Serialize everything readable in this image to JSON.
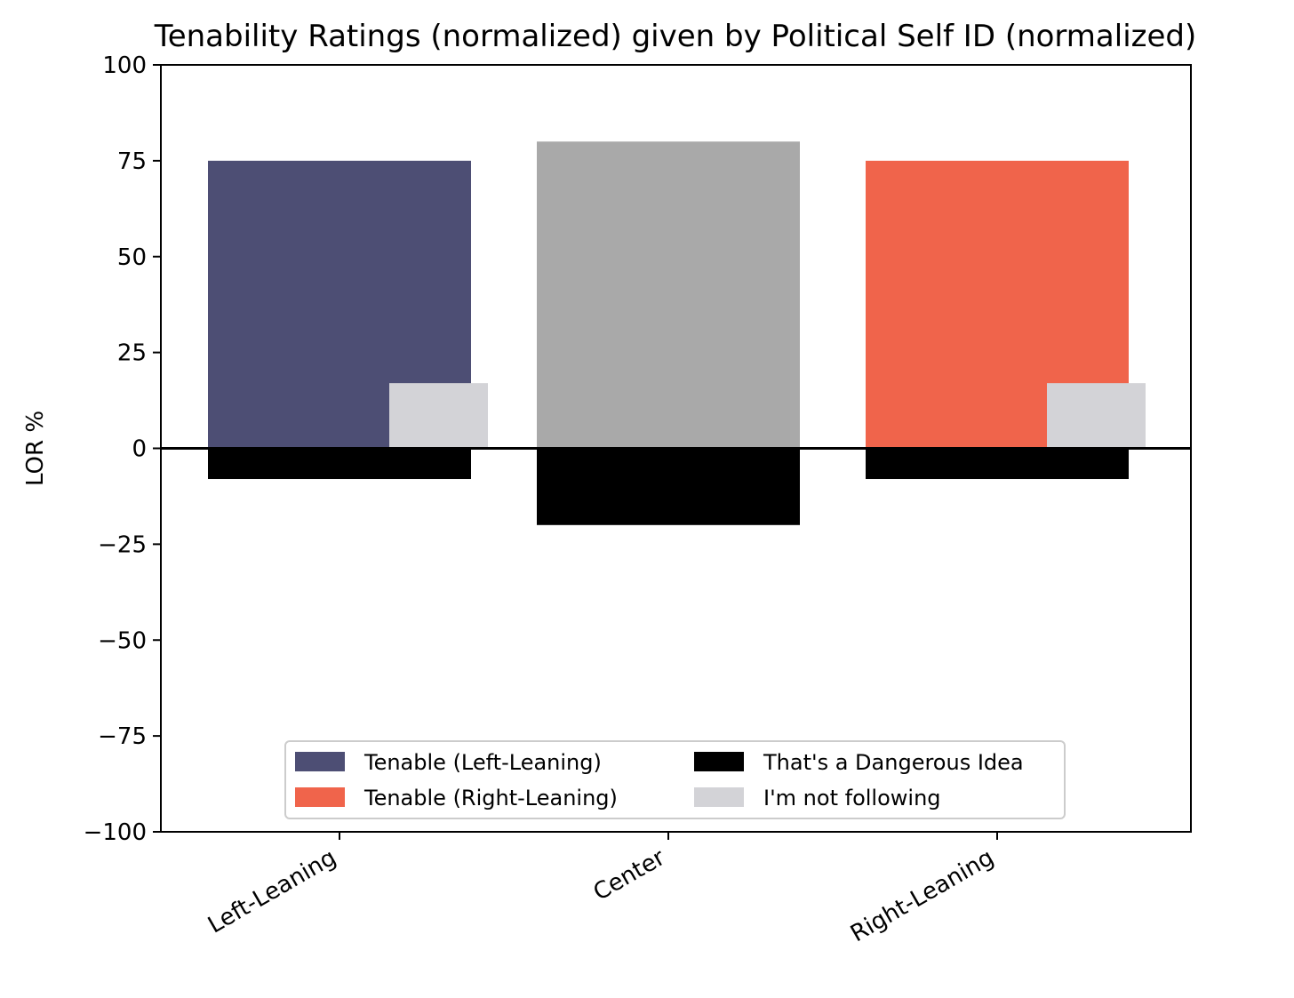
{
  "chart_data": {
    "type": "bar",
    "title": "Tenability Ratings (normalized) given by Political Self ID (normalized)",
    "xlabel": "",
    "ylabel": "LOR %",
    "ylim": [
      -100,
      100
    ],
    "yticks": [
      100,
      75,
      50,
      25,
      0,
      -25,
      -50,
      -75,
      -100
    ],
    "ytick_labels": [
      "100",
      "75",
      "50",
      "25",
      "0",
      "−25",
      "−50",
      "−75",
      "−100"
    ],
    "categories": [
      "Left-Leaning",
      "Center",
      "Right-Leaning"
    ],
    "tenable": [
      75,
      80,
      75
    ],
    "tenable_colors": [
      "#4d4e74",
      "#a9a9a9",
      "#f0644b"
    ],
    "dangerous": [
      -8,
      -20,
      -8
    ],
    "not_following": [
      17,
      null,
      17
    ],
    "legend": {
      "placement": "lower center",
      "entries": [
        {
          "label": "Tenable (Left-Leaning)",
          "color": "#4d4e74"
        },
        {
          "label": "That's a Dangerous Idea",
          "color": "#000000"
        },
        {
          "label": "Tenable (Right-Leaning)",
          "color": "#f0644b"
        },
        {
          "label": "I'm not following",
          "color": "#d3d3d7"
        }
      ]
    },
    "colors": {
      "dangerous": "#000000",
      "not_following": "#d3d3d7",
      "zero_line": "#000000"
    }
  }
}
